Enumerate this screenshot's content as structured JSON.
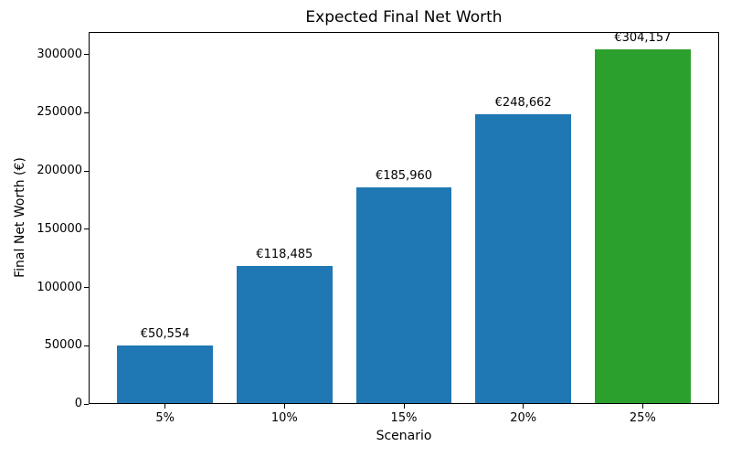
{
  "chart_data": {
    "type": "bar",
    "title": "Expected Final Net Worth",
    "xlabel": "Scenario",
    "ylabel": "Final Net Worth (€)",
    "categories": [
      "5%",
      "10%",
      "15%",
      "20%",
      "25%"
    ],
    "values": [
      50554,
      118485,
      185960,
      248662,
      304157
    ],
    "bar_labels": [
      "€50,554",
      "€118,485",
      "€185,960",
      "€248,662",
      "€304,157"
    ],
    "bar_colors": [
      "#1f77b4",
      "#1f77b4",
      "#1f77b4",
      "#1f77b4",
      "#2ca02c"
    ],
    "accent_blue": "#1f77b4",
    "accent_green": "#2ca02c",
    "ylim": [
      0,
      319365
    ],
    "yticks": [
      0,
      50000,
      100000,
      150000,
      200000,
      250000,
      300000
    ],
    "grid": false,
    "legend": "none",
    "bar_relative_width": 0.8,
    "x_axis_margin": 0.64
  }
}
